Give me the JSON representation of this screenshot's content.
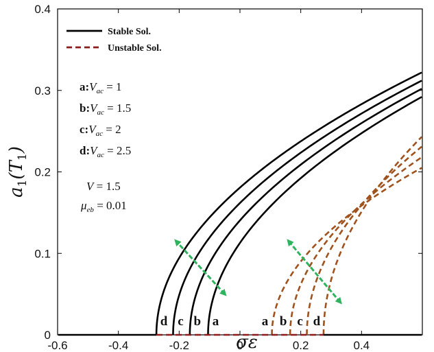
{
  "chart_data": {
    "type": "line",
    "title": "",
    "xlabel": "σε",
    "ylabel": "a1(T1)",
    "xlim": [
      -0.6,
      0.6
    ],
    "ylim": [
      0,
      0.4
    ],
    "xticks": [
      "-0.6",
      "-0.4",
      "-0.2",
      "0",
      "0.2",
      "0.4"
    ],
    "yticks": [
      "0",
      "0.1",
      "0.2",
      "0.3",
      "0.4"
    ],
    "grid": false,
    "legend": {
      "placement": "top-left",
      "entries": [
        {
          "label": "Stable Sol.",
          "style": "solid",
          "color": "#000000"
        },
        {
          "label": "Unstable Sol.",
          "style": "dashed",
          "color": "#8b1a1a"
        }
      ]
    },
    "params": [
      {
        "letter": "a",
        "label": "V",
        "sub": "ac",
        "value": "1"
      },
      {
        "letter": "b",
        "label": "V",
        "sub": "ac",
        "value": "1.5"
      },
      {
        "letter": "c",
        "label": "V",
        "sub": "ac",
        "value": "2"
      },
      {
        "letter": "d",
        "label": "V",
        "sub": "ac",
        "value": "2.5"
      }
    ],
    "constants": [
      {
        "label": "V",
        "sub": "",
        "value": "1.5"
      },
      {
        "label": "μ",
        "sub": "eb",
        "value": "0.01"
      }
    ],
    "baseline": {
      "y": 0,
      "stable_left": [
        -0.6,
        -0.275
      ],
      "unstable": [
        -0.275,
        0.275
      ],
      "stable_right": [
        0.275,
        0.6
      ]
    },
    "stable_curves": [
      {
        "letter": "d",
        "x0": -0.275,
        "y_end": 0.322
      },
      {
        "letter": "c",
        "x0": -0.22,
        "y_end": 0.312
      },
      {
        "letter": "b",
        "x0": -0.165,
        "y_end": 0.302
      },
      {
        "letter": "a",
        "x0": -0.105,
        "y_end": 0.292
      }
    ],
    "unstable_curves": [
      {
        "letter": "a",
        "x0": 0.105,
        "y_end": 0.205
      },
      {
        "letter": "b",
        "x0": 0.165,
        "y_end": 0.218
      },
      {
        "letter": "c",
        "x0": 0.22,
        "y_end": 0.231
      },
      {
        "letter": "d",
        "x0": 0.275,
        "y_end": 0.243
      }
    ],
    "arrows": [
      {
        "from": [
          -0.05,
          0.05
        ],
        "to": [
          -0.21,
          0.115
        ],
        "color": "#2fb35f"
      },
      {
        "from": [
          0.16,
          0.115
        ],
        "to": [
          0.33,
          0.04
        ],
        "color": "#2fb35f"
      }
    ]
  }
}
